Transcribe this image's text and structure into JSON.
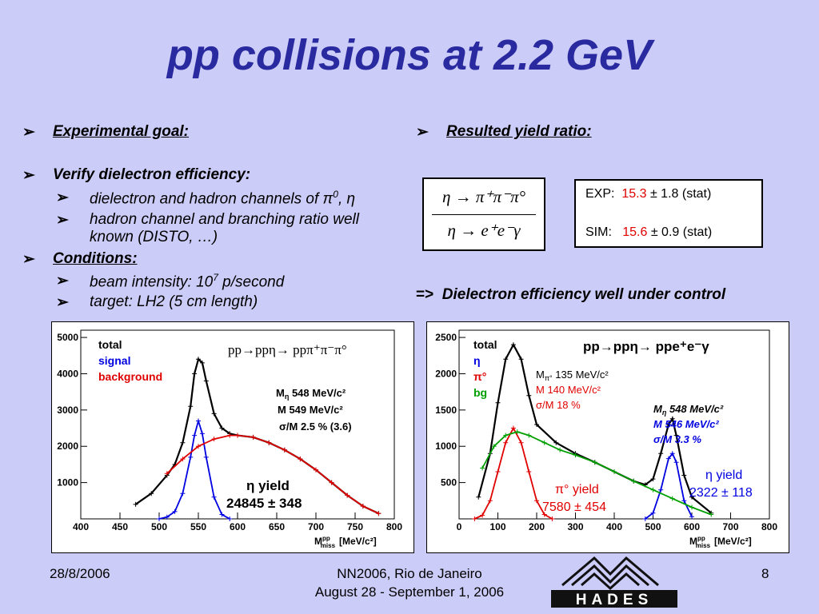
{
  "title": "pp collisions at 2.2 GeV",
  "left_bullets": {
    "goal": "Experimental goal:",
    "verify": "Verify dielectron efficiency:",
    "sub1_text": "dielectron and hadron channels of ",
    "sub1_pi": "π",
    "sub1_sup": "0",
    "sub1_eta": "η",
    "sub2_line1": "hadron channel and branching ratio well",
    "sub2_line2": "known (DISTO, …)",
    "conditions": "Conditions:",
    "sub3_text": "beam intensity: 10",
    "sub3_sup": "7",
    "sub3_end": " p/second",
    "sub4_text": "target: LH2 (5 cm length)"
  },
  "right_bullets": {
    "yield_ratio": "Resulted yield ratio:"
  },
  "ratio": {
    "numerator": "η → π⁺π⁻π°",
    "denominator": "η → e⁺e⁻γ"
  },
  "results": {
    "exp_label": "EXP:",
    "exp_value": "15.3",
    "exp_err": "± 1.8 (stat)",
    "sim_label": "SIM:",
    "sim_value": "15.6",
    "sim_err": "± 0.9 (stat)"
  },
  "conclusion": {
    "arrow": "=>",
    "text": "Dielectron efficiency well under control"
  },
  "footer": {
    "date": "28/8/2006",
    "conf_line1": "NN2006, Rio de Janeiro",
    "conf_line2": "August 28 - September 1, 2006",
    "page": "8",
    "logo_text": "HADES"
  },
  "colors": {
    "title": "#2a2aa0",
    "background": "#ccccf8",
    "total": "#000000",
    "signal": "#0000e0",
    "background_fit": "#e00000",
    "pi0": "#e00000",
    "bg_green": "#00a000",
    "value_red": "#e00000"
  },
  "chart_data": [
    {
      "type": "line",
      "title": "pp→ppη→ ppπ⁺π⁻π°",
      "xlabel": "M_miss^pp [MeV/c²]",
      "xlabel_main": "M",
      "xlabel_sup": "pp",
      "xlabel_sub": "miss",
      "xlabel_unit": "[MeV/c²]",
      "xlim": [
        400,
        800
      ],
      "ylim": [
        0,
        5200
      ],
      "xticks": [
        400,
        450,
        500,
        550,
        600,
        650,
        700,
        750,
        800
      ],
      "yticks": [
        1000,
        2000,
        3000,
        4000,
        5000
      ],
      "legend": [
        {
          "label": "total",
          "color": "#000000"
        },
        {
          "label": "signal",
          "color": "#0000e0"
        },
        {
          "label": "background",
          "color": "#e00000"
        }
      ],
      "params": [
        {
          "label": "M",
          "sub": "η",
          "value": "548 MeV/c²"
        },
        {
          "label": "M",
          "sub": "",
          "value": "549 MeV/c²"
        },
        {
          "label": "σ/M",
          "sub": "",
          "value": "2.5 % (3.6)"
        }
      ],
      "yield_label": "η yield",
      "yield_value": "24845 ± 348",
      "series": [
        {
          "name": "total",
          "color": "#000000",
          "x": [
            470,
            490,
            510,
            520,
            530,
            540,
            545,
            550,
            555,
            560,
            570,
            580,
            590,
            600,
            620,
            640,
            660,
            680,
            700,
            720,
            740,
            760,
            780
          ],
          "y": [
            400,
            700,
            1200,
            1500,
            2100,
            3100,
            4000,
            4400,
            4300,
            3800,
            2900,
            2500,
            2350,
            2300,
            2250,
            2100,
            1900,
            1650,
            1350,
            1000,
            650,
            350,
            150
          ]
        },
        {
          "name": "signal",
          "color": "#0000e0",
          "x": [
            500,
            510,
            520,
            530,
            540,
            545,
            550,
            555,
            560,
            570,
            580,
            590
          ],
          "y": [
            0,
            50,
            200,
            700,
            1700,
            2300,
            2700,
            2350,
            1700,
            600,
            120,
            0
          ]
        },
        {
          "name": "background",
          "color": "#e00000",
          "x": [
            510,
            530,
            550,
            570,
            590,
            600,
            620,
            640,
            660,
            680,
            700,
            720,
            740,
            760,
            780
          ],
          "y": [
            1250,
            1650,
            2000,
            2200,
            2300,
            2300,
            2250,
            2100,
            1900,
            1650,
            1350,
            1000,
            650,
            350,
            150
          ]
        }
      ]
    },
    {
      "type": "line",
      "title": "pp→ppη→ ppe⁺e⁻γ",
      "xlabel": "M_miss^pp [MeV/c²]",
      "xlabel_main": "M",
      "xlabel_sup": "pp",
      "xlabel_sub": "miss",
      "xlabel_unit": "[MeV/c²]",
      "xlim": [
        0,
        800
      ],
      "ylim": [
        0,
        2600
      ],
      "xticks": [
        0,
        100,
        200,
        300,
        400,
        500,
        600,
        700,
        800
      ],
      "yticks": [
        500,
        1000,
        1500,
        2000,
        2500
      ],
      "legend": [
        {
          "label": "total",
          "color": "#000000"
        },
        {
          "label": "η",
          "color": "#0000e0"
        },
        {
          "label": "π°",
          "color": "#e00000"
        },
        {
          "label": "bg",
          "color": "#00a000"
        }
      ],
      "params_pi0_exp": [
        {
          "label": "M",
          "sub": "π°",
          "value": "135 MeV/c²"
        },
        {
          "label": "M",
          "sub": "",
          "value": "140 MeV/c²"
        },
        {
          "label": "σ/M",
          "sub": "",
          "value": "18 %"
        }
      ],
      "params_eta": [
        {
          "label": "M",
          "sub": "η",
          "value": "548 MeV/c²"
        },
        {
          "label": "M",
          "sub": "",
          "value": "546 MeV/c²"
        },
        {
          "label": "σ/M",
          "sub": "",
          "value": "3.3 %"
        }
      ],
      "pi0_yield_label": "π° yield",
      "pi0_yield_value": "7580 ± 454",
      "eta_yield_label": "η yield",
      "eta_yield_value": "2322 ± 118",
      "series": [
        {
          "name": "total",
          "color": "#000000",
          "x": [
            50,
            80,
            100,
            120,
            140,
            160,
            180,
            200,
            250,
            300,
            350,
            400,
            450,
            480,
            500,
            520,
            540,
            550,
            560,
            580,
            600,
            650
          ],
          "y": [
            300,
            900,
            1600,
            2200,
            2400,
            2200,
            1700,
            1300,
            1050,
            900,
            780,
            650,
            520,
            470,
            550,
            900,
            1300,
            1380,
            1150,
            600,
            300,
            80
          ]
        },
        {
          "name": "η",
          "color": "#0000e0",
          "x": [
            480,
            500,
            520,
            540,
            550,
            560,
            580,
            600
          ],
          "y": [
            0,
            80,
            400,
            830,
            900,
            780,
            250,
            30
          ]
        },
        {
          "name": "π°",
          "color": "#e00000",
          "x": [
            40,
            60,
            80,
            100,
            120,
            140,
            160,
            180,
            200,
            220,
            240
          ],
          "y": [
            0,
            50,
            250,
            650,
            1050,
            1250,
            1050,
            650,
            250,
            60,
            0
          ]
        },
        {
          "name": "bg",
          "color": "#00a000",
          "x": [
            60,
            90,
            120,
            150,
            180,
            220,
            260,
            300,
            350,
            400,
            450,
            500,
            550,
            600,
            650
          ],
          "y": [
            700,
            1000,
            1150,
            1200,
            1150,
            1050,
            950,
            880,
            780,
            650,
            520,
            400,
            280,
            160,
            60
          ]
        }
      ]
    }
  ]
}
